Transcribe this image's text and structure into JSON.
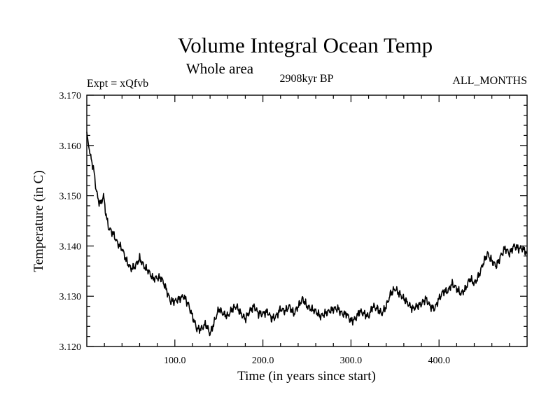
{
  "chart_data": {
    "type": "line",
    "title": "Volume Integral Ocean Temp",
    "subtitle": "Whole area",
    "left_label": "Expt = xQfvb",
    "center_label": "2908kyr BP",
    "right_label": "ALL_MONTHS",
    "xlabel": "Time (in years since start)",
    "ylabel": "Temperature (in C)",
    "xlim": [
      0,
      500
    ],
    "ylim": [
      3.12,
      3.17
    ],
    "xticks": [
      {
        "value": 100,
        "label": "100.0"
      },
      {
        "value": 200,
        "label": "200.0"
      },
      {
        "value": 300,
        "label": "300.0"
      },
      {
        "value": 400,
        "label": "400.0"
      }
    ],
    "yticks": [
      {
        "value": 3.12,
        "label": "3.120"
      },
      {
        "value": 3.13,
        "label": "3.130"
      },
      {
        "value": 3.14,
        "label": "3.140"
      },
      {
        "value": 3.15,
        "label": "3.150"
      },
      {
        "value": 3.16,
        "label": "3.160"
      },
      {
        "value": 3.17,
        "label": "3.170"
      }
    ],
    "series": [
      {
        "name": "Volume Integral Ocean Temp",
        "color": "#000000",
        "x": [
          0,
          2,
          4,
          6,
          8,
          10,
          13,
          16,
          19,
          22,
          25,
          30,
          35,
          40,
          45,
          50,
          55,
          60,
          65,
          70,
          75,
          80,
          85,
          90,
          95,
          100,
          105,
          110,
          115,
          120,
          125,
          130,
          135,
          140,
          145,
          150,
          155,
          160,
          165,
          170,
          175,
          180,
          185,
          190,
          195,
          200,
          205,
          210,
          215,
          220,
          225,
          230,
          235,
          240,
          245,
          250,
          255,
          260,
          265,
          270,
          275,
          280,
          285,
          290,
          295,
          300,
          305,
          310,
          315,
          320,
          325,
          330,
          335,
          340,
          345,
          350,
          355,
          360,
          365,
          370,
          375,
          380,
          385,
          390,
          395,
          400,
          405,
          410,
          415,
          420,
          425,
          430,
          435,
          440,
          445,
          450,
          455,
          460,
          465,
          470,
          475,
          480,
          485,
          490,
          495,
          500
        ],
        "values": [
          3.1627,
          3.16,
          3.158,
          3.1565,
          3.155,
          3.152,
          3.149,
          3.1485,
          3.15,
          3.146,
          3.1435,
          3.1425,
          3.1405,
          3.1395,
          3.137,
          3.1355,
          3.136,
          3.1375,
          3.136,
          3.135,
          3.1335,
          3.1337,
          3.1335,
          3.1315,
          3.129,
          3.129,
          3.1295,
          3.13,
          3.1285,
          3.126,
          3.1235,
          3.1235,
          3.1245,
          3.1225,
          3.125,
          3.1275,
          3.1265,
          3.126,
          3.1275,
          3.128,
          3.1265,
          3.1255,
          3.127,
          3.128,
          3.1265,
          3.1265,
          3.127,
          3.1255,
          3.126,
          3.1275,
          3.127,
          3.128,
          3.1265,
          3.128,
          3.1295,
          3.128,
          3.1275,
          3.127,
          3.126,
          3.1265,
          3.127,
          3.1275,
          3.1275,
          3.1265,
          3.1265,
          3.125,
          3.1255,
          3.127,
          3.1265,
          3.126,
          3.128,
          3.1275,
          3.1265,
          3.128,
          3.1305,
          3.1315,
          3.1305,
          3.1295,
          3.1285,
          3.1275,
          3.128,
          3.1285,
          3.1295,
          3.128,
          3.1275,
          3.1295,
          3.131,
          3.131,
          3.1325,
          3.1315,
          3.1305,
          3.1315,
          3.1335,
          3.1325,
          3.134,
          3.1365,
          3.1385,
          3.137,
          3.136,
          3.138,
          3.1395,
          3.1385,
          3.14,
          3.1395,
          3.1395,
          3.1385
        ]
      }
    ]
  }
}
